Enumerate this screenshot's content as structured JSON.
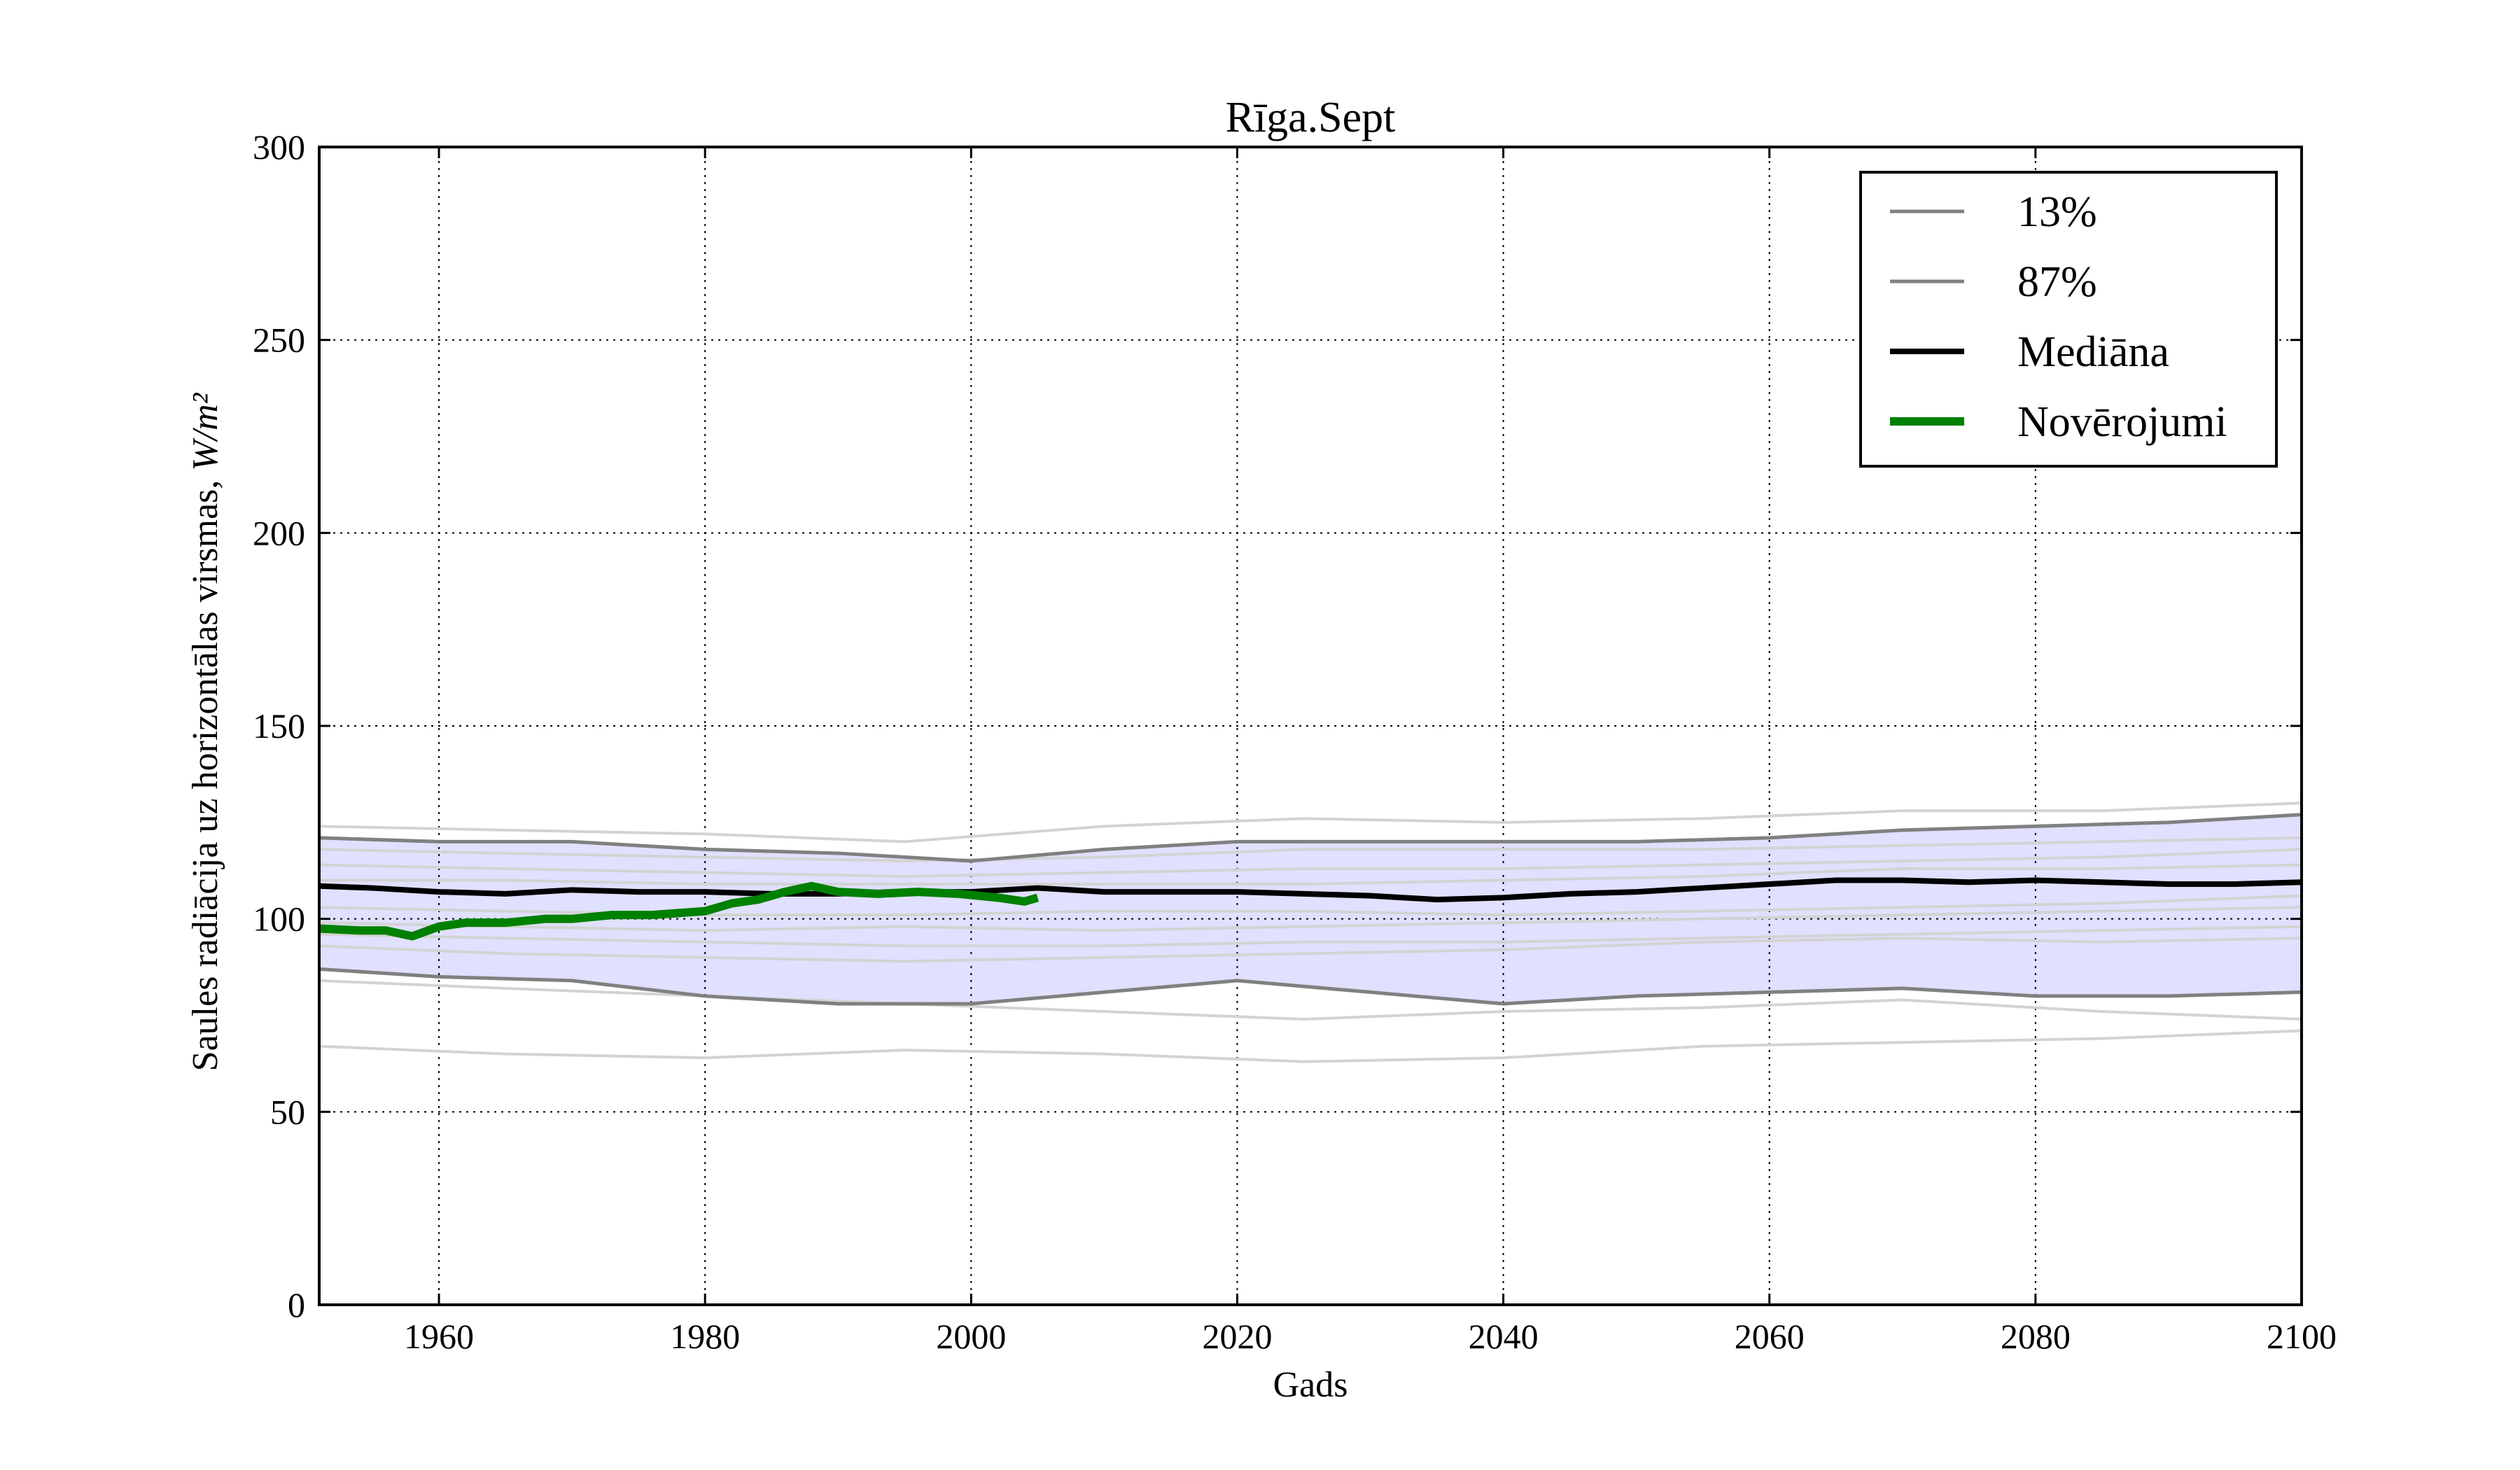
{
  "chart_data": {
    "type": "line",
    "title": "Rīga.Sept",
    "xlabel": "Gads",
    "ylabel": "Saules radiācija uz horizontālas virsmas, ",
    "ylabel_unit": "W/m²",
    "xlim": [
      1951,
      2100
    ],
    "ylim": [
      0,
      300
    ],
    "xticks": [
      "1960",
      "1980",
      "2000",
      "2020",
      "2040",
      "2060",
      "2080",
      "2100"
    ],
    "yticks": [
      "0",
      "50",
      "100",
      "150",
      "200",
      "250",
      "300"
    ],
    "grid": true,
    "legend_position": "top-right",
    "band": {
      "color": "#e0e0ff",
      "x": [
        1951,
        1960,
        1970,
        1980,
        1990,
        2000,
        2010,
        2020,
        2030,
        2040,
        2050,
        2060,
        2070,
        2080,
        2090,
        2100
      ],
      "lower": [
        87,
        85,
        84,
        80,
        78,
        78,
        81,
        84,
        81,
        78,
        80,
        81,
        82,
        80,
        80,
        81
      ],
      "upper": [
        121,
        120,
        120,
        118,
        117,
        115,
        118,
        120,
        120,
        120,
        120,
        121,
        123,
        124,
        125,
        127
      ]
    },
    "series": [
      {
        "name": "13%",
        "color": "#808080",
        "x": [
          1951,
          1960,
          1970,
          1980,
          1990,
          2000,
          2010,
          2020,
          2030,
          2040,
          2050,
          2060,
          2070,
          2080,
          2090,
          2100
        ],
        "values": [
          87,
          85,
          84,
          80,
          78,
          78,
          81,
          84,
          81,
          78,
          80,
          81,
          82,
          80,
          80,
          81
        ]
      },
      {
        "name": "87%",
        "color": "#808080",
        "x": [
          1951,
          1960,
          1970,
          1980,
          1990,
          2000,
          2010,
          2020,
          2030,
          2040,
          2050,
          2060,
          2070,
          2080,
          2090,
          2100
        ],
        "values": [
          121,
          120,
          120,
          118,
          117,
          115,
          118,
          120,
          120,
          120,
          120,
          121,
          123,
          124,
          125,
          127
        ]
      },
      {
        "name": "Mediāna",
        "color": "#000000",
        "x": [
          1951,
          1955,
          1960,
          1965,
          1970,
          1975,
          1980,
          1985,
          1990,
          1995,
          2000,
          2005,
          2010,
          2015,
          2020,
          2025,
          2030,
          2035,
          2040,
          2045,
          2050,
          2055,
          2060,
          2065,
          2070,
          2075,
          2080,
          2085,
          2090,
          2095,
          2100
        ],
        "values": [
          108.5,
          108,
          107,
          106.5,
          107.5,
          107,
          107,
          106.5,
          106.5,
          107,
          107,
          108,
          107,
          107,
          107,
          106.5,
          106,
          105,
          105.5,
          106.5,
          107,
          108,
          109,
          110,
          110,
          109.5,
          110,
          109.5,
          109,
          109,
          109.5
        ]
      },
      {
        "name": "Novērojumi",
        "color": "#008000",
        "x": [
          1951,
          1954,
          1956,
          1958,
          1960,
          1962,
          1965,
          1968,
          1970,
          1973,
          1976,
          1978,
          1980,
          1982,
          1984,
          1986,
          1988,
          1990,
          1993,
          1996,
          1999,
          2002,
          2004,
          2005
        ],
        "values": [
          97.5,
          97,
          97,
          95.5,
          98,
          99,
          99,
          100,
          100,
          101,
          101,
          101.5,
          102,
          104,
          105,
          107,
          108.5,
          107,
          106.5,
          107,
          106.5,
          105.5,
          104.5,
          105.5
        ]
      }
    ],
    "ensemble_members": {
      "color": "#d3d3d3",
      "x": [
        1951,
        1965,
        1980,
        1995,
        2010,
        2025,
        2040,
        2055,
        2070,
        2085,
        2100
      ],
      "lines": [
        [
          124,
          123,
          122,
          120,
          124,
          126,
          125,
          126,
          128,
          128,
          130
        ],
        [
          118,
          117,
          116,
          115,
          116,
          118,
          118,
          118,
          119,
          120,
          121
        ],
        [
          114,
          113,
          112,
          111,
          112,
          113,
          113,
          114,
          115,
          116,
          118
        ],
        [
          110,
          110,
          109,
          109,
          109,
          109,
          110,
          111,
          113,
          113,
          114
        ],
        [
          103,
          102,
          101,
          101,
          102,
          102,
          101,
          102,
          103,
          104,
          106
        ],
        [
          99,
          98,
          97,
          98,
          97,
          98,
          99,
          100,
          101,
          102,
          103
        ],
        [
          96,
          95,
          94,
          93,
          93,
          94,
          94,
          95,
          96,
          97,
          98
        ],
        [
          93,
          91,
          90,
          89,
          90,
          91,
          92,
          94,
          95,
          94,
          95
        ],
        [
          84,
          82,
          80,
          78,
          76,
          74,
          76,
          77,
          79,
          76,
          74
        ],
        [
          67,
          65,
          64,
          66,
          65,
          63,
          64,
          67,
          68,
          69,
          71
        ]
      ]
    }
  }
}
